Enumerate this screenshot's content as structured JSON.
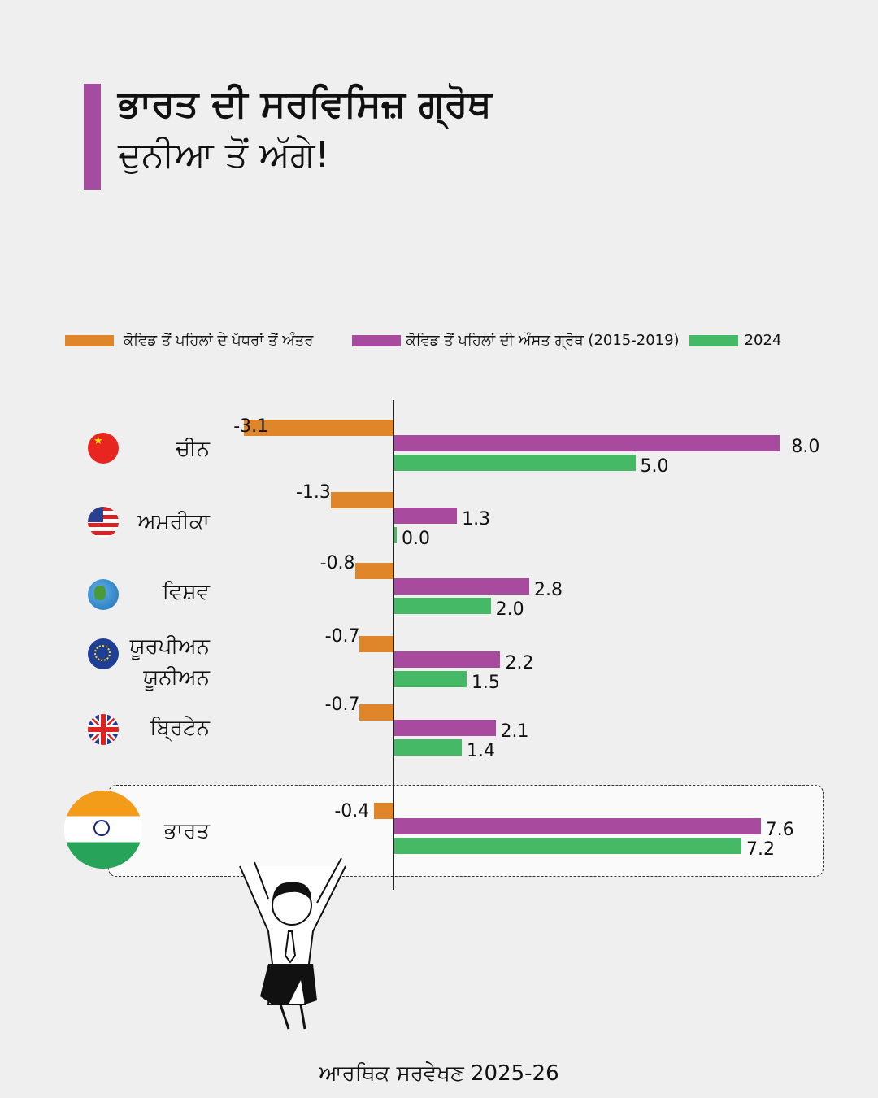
{
  "title": {
    "line1": "ਭਾਰਤ ਦੀ ਸਰਵਿਸਿਜ਼ ਗ੍ਰੋਥ",
    "line2": "ਦੁਨੀਆ ਤੋਂ ਅੱਗੇ!"
  },
  "footer": "ਆਰਥਿਕ ਸਰਵੇਖਣ 2025-26",
  "colors": {
    "orange": "#e0862a",
    "purple": "#a84a9e",
    "green": "#46b966",
    "accent": "#a64ca0"
  },
  "chart_data": {
    "type": "bar",
    "orientation": "horizontal",
    "title": "ਭਾਰਤ ਦੀ ਸਰਵਿਸਿਜ਼ ਗ੍ਰੋਥ ਦੁਨੀਆ ਤੋਂ ਅੱਗੇ!",
    "legend_position": "top",
    "categories": [
      "ਚੀਨ",
      "ਅਮਰੀਕਾ",
      "ਵਿਸ਼ਵ",
      "ਯੂਰਪੀਅਨ ਯੂਨੀਅਨ",
      "ਬ੍ਰਿਟੇਨ",
      "ਭਾਰਤ"
    ],
    "category_lines": [
      [
        "ਚੀਨ"
      ],
      [
        "ਅਮਰੀਕਾ"
      ],
      [
        "ਵਿਸ਼ਵ"
      ],
      [
        "ਯੂਰਪੀਅਨ",
        "ਯੂਨੀਅਨ"
      ],
      [
        "ਬ੍ਰਿਟੇਨ"
      ],
      [
        "ਭਾਰਤ"
      ]
    ],
    "series": [
      {
        "name": "ਕੋਵਿਡ ਤੋਂ ਪਹਿਲਾਂ ਦੇ ਪੱਧਰਾਂ ਤੋਂ ਅੰਤਰ",
        "color": "#e0862a",
        "values": [
          -3.1,
          -1.3,
          -0.8,
          -0.7,
          -0.7,
          -0.4
        ],
        "labels": [
          "-3.1",
          "-1.3",
          "-0.8",
          "-0.7",
          "-0.7",
          "-0.4"
        ]
      },
      {
        "name": "ਕੋਵਿਡ ਤੋਂ ਪਹਿਲਾਂ ਦੀ ਔਸਤ ਗ੍ਰੋਥ (2015-2019)",
        "color": "#a84a9e",
        "values": [
          8.0,
          1.3,
          2.8,
          2.2,
          2.1,
          7.6
        ],
        "labels": [
          "8.0",
          "1.3",
          "2.8",
          "2.2",
          "2.1",
          "7.6"
        ]
      },
      {
        "name": "2024",
        "color": "#46b966",
        "values": [
          5.0,
          0.0,
          2.0,
          1.5,
          1.4,
          7.2
        ],
        "labels": [
          "5.0",
          "0.0",
          "2.0",
          "1.5",
          "1.4",
          "7.2"
        ]
      }
    ],
    "highlight": "ਭਾਰਤ",
    "xlim": [
      -3.1,
      8.0
    ]
  }
}
